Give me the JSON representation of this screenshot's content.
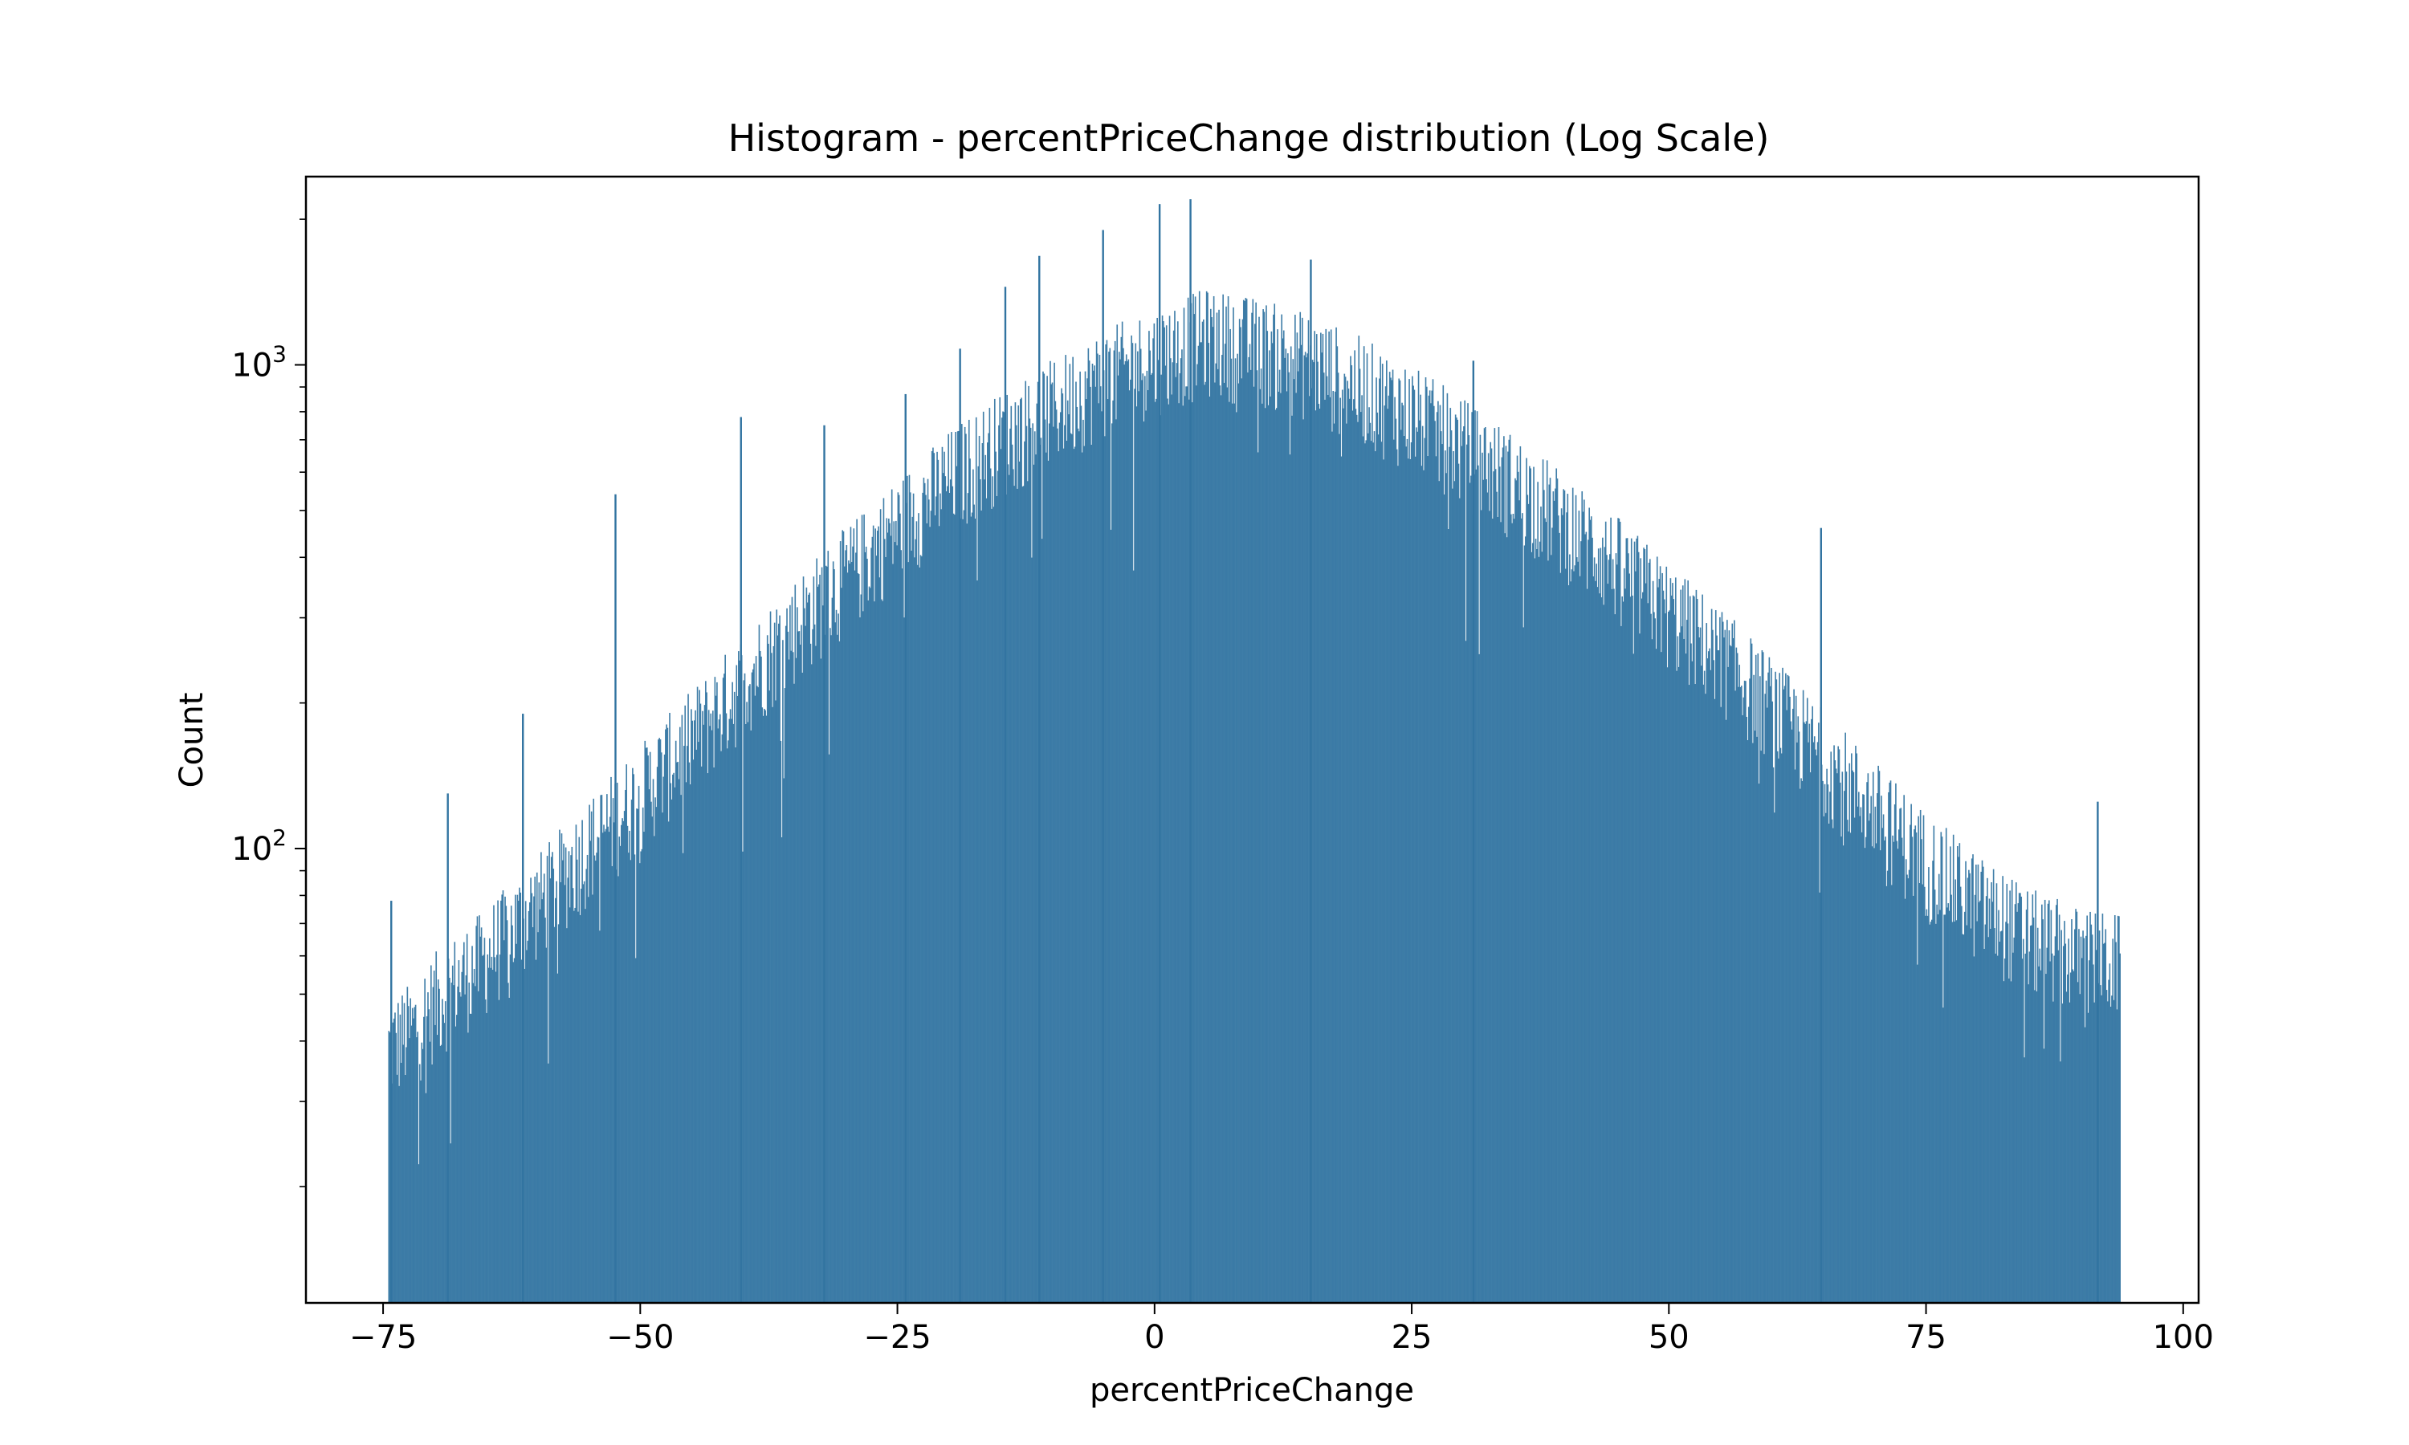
{
  "chart_data": {
    "type": "bar",
    "histogram": true,
    "title": "Histogram - percentPriceChange distribution (Log Scale)",
    "xlabel": "percentPriceChange",
    "ylabel": "Count",
    "xlim": [
      -82.5,
      101.5
    ],
    "ylim": [
      11.5,
      2450
    ],
    "yscale": "log",
    "grid": false,
    "legend": "none",
    "bar_color": "#3274a1",
    "bin_range": [
      -74.5,
      93.8
    ],
    "x_ticks": [
      {
        "value": -75,
        "label": "−75"
      },
      {
        "value": -50,
        "label": "−50"
      },
      {
        "value": -25,
        "label": "−25"
      },
      {
        "value": 0,
        "label": "0"
      },
      {
        "value": 25,
        "label": "25"
      },
      {
        "value": 50,
        "label": "50"
      },
      {
        "value": 75,
        "label": "75"
      },
      {
        "value": 100,
        "label": "100"
      }
    ],
    "y_major_ticks": [
      {
        "value": 100,
        "base": "10",
        "exp": "2"
      },
      {
        "value": 1000,
        "base": "10",
        "exp": "3"
      }
    ],
    "y_minor_ticks": [
      20,
      30,
      40,
      50,
      60,
      70,
      80,
      90,
      200,
      300,
      400,
      500,
      600,
      700,
      800,
      900,
      2000
    ],
    "envelope": [
      [
        -74.5,
        40
      ],
      [
        -72,
        44
      ],
      [
        -70,
        50
      ],
      [
        -65,
        62
      ],
      [
        -60,
        80
      ],
      [
        -55,
        105
      ],
      [
        -50,
        135
      ],
      [
        -45,
        175
      ],
      [
        -40,
        230
      ],
      [
        -35,
        300
      ],
      [
        -30,
        380
      ],
      [
        -25,
        480
      ],
      [
        -20,
        600
      ],
      [
        -15,
        720
      ],
      [
        -10,
        840
      ],
      [
        -5,
        970
      ],
      [
        0,
        1080
      ],
      [
        5,
        1180
      ],
      [
        10,
        1130
      ],
      [
        15,
        1050
      ],
      [
        20,
        940
      ],
      [
        25,
        820
      ],
      [
        30,
        700
      ],
      [
        35,
        590
      ],
      [
        40,
        490
      ],
      [
        45,
        400
      ],
      [
        50,
        320
      ],
      [
        55,
        260
      ],
      [
        60,
        205
      ],
      [
        65,
        160
      ],
      [
        70,
        125
      ],
      [
        75,
        98
      ],
      [
        80,
        80
      ],
      [
        85,
        68
      ],
      [
        90,
        62
      ],
      [
        93.8,
        60
      ]
    ],
    "spikes": [
      {
        "x": -74.3,
        "count": 78
      },
      {
        "x": -68.8,
        "count": 130
      },
      {
        "x": -61.5,
        "count": 190
      },
      {
        "x": -52.5,
        "count": 540
      },
      {
        "x": -40.3,
        "count": 780
      },
      {
        "x": -32.2,
        "count": 750
      },
      {
        "x": -24.3,
        "count": 870
      },
      {
        "x": -19.0,
        "count": 1080
      },
      {
        "x": -14.6,
        "count": 1450
      },
      {
        "x": -11.3,
        "count": 1680
      },
      {
        "x": -5.1,
        "count": 1900
      },
      {
        "x": 0.4,
        "count": 2150
      },
      {
        "x": 3.4,
        "count": 2200
      },
      {
        "x": 15.1,
        "count": 1650
      },
      {
        "x": 30.9,
        "count": 1020
      },
      {
        "x": 64.7,
        "count": 460
      },
      {
        "x": 91.6,
        "count": 125
      }
    ]
  }
}
